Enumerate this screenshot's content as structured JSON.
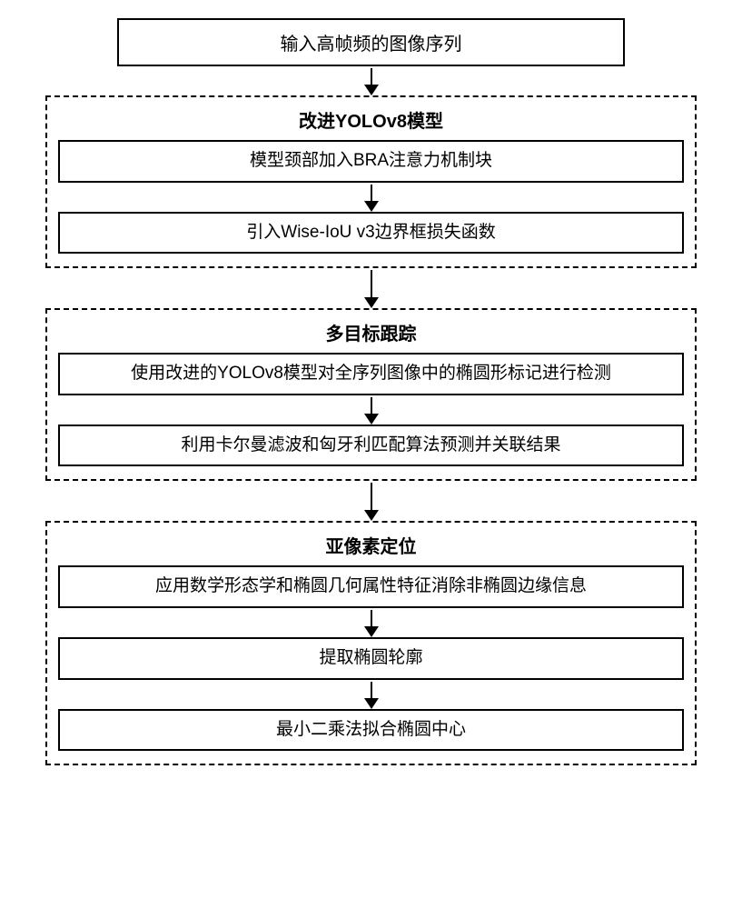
{
  "colors": {
    "border": "#000000",
    "background": "#ffffff",
    "text": "#000000"
  },
  "diagram": {
    "type": "flowchart",
    "input_box": "输入高帧频的图像序列",
    "section1": {
      "title": "改进YOLOv8模型",
      "step1": "模型颈部加入BRA注意力机制块",
      "step2": "引入Wise-IoU v3边界框损失函数"
    },
    "section2": {
      "title": "多目标跟踪",
      "step1": "使用改进的YOLOv8模型对全序列图像中的椭圆形标记进行检测",
      "step2": "利用卡尔曼滤波和匈牙利匹配算法预测并关联结果"
    },
    "section3": {
      "title": "亚像素定位",
      "step1": "应用数学形态学和椭圆几何属性特征消除非椭圆边缘信息",
      "step2": "提取椭圆轮廓",
      "step3": "最小二乘法拟合椭圆中心"
    }
  }
}
